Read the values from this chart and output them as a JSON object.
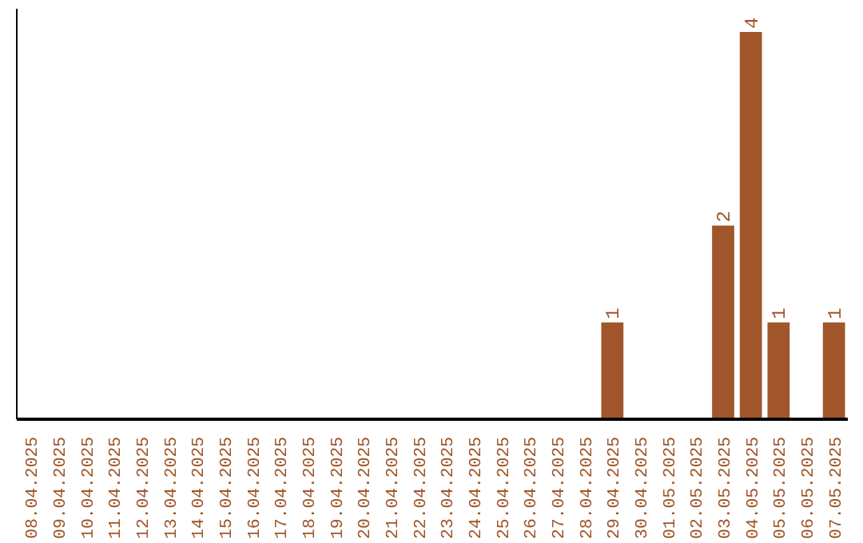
{
  "chart_data": {
    "type": "bar",
    "tick_labels": "x",
    "grid": false,
    "categories": [
      "08.04.2025",
      "09.04.2025",
      "10.04.2025",
      "11.04.2025",
      "12.04.2025",
      "13.04.2025",
      "14.04.2025",
      "15.04.2025",
      "16.04.2025",
      "17.04.2025",
      "18.04.2025",
      "19.04.2025",
      "20.04.2025",
      "21.04.2025",
      "22.04.2025",
      "23.04.2025",
      "24.04.2025",
      "25.04.2025",
      "26.04.2025",
      "27.04.2025",
      "28.04.2025",
      "29.04.2025",
      "30.04.2025",
      "01.05.2025",
      "02.05.2025",
      "03.05.2025",
      "04.05.2025",
      "05.05.2025",
      "06.05.2025",
      "07.05.2025"
    ],
    "values": [
      null,
      null,
      null,
      null,
      null,
      null,
      null,
      null,
      null,
      null,
      null,
      null,
      null,
      null,
      null,
      null,
      null,
      null,
      null,
      null,
      null,
      1,
      null,
      null,
      null,
      2,
      4,
      1,
      null,
      1
    ],
    "value_labels": [
      null,
      null,
      null,
      null,
      null,
      null,
      null,
      null,
      null,
      null,
      null,
      null,
      null,
      null,
      null,
      null,
      null,
      null,
      null,
      null,
      null,
      "1",
      null,
      null,
      null,
      "2",
      "4",
      "1",
      null,
      "1"
    ],
    "color": "#a0562a"
  }
}
